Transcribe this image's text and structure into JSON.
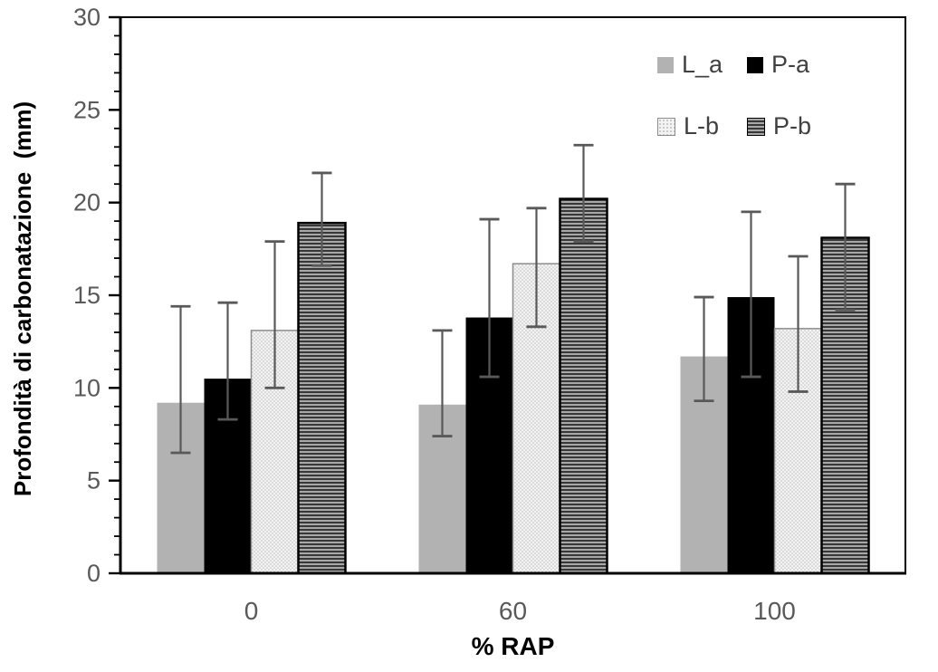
{
  "chart_data": {
    "type": "bar",
    "title": "",
    "xlabel": "% RAP",
    "ylabel": "Profondità di carbonatazione  (mm)",
    "categories": [
      "0",
      "60",
      "100"
    ],
    "ylim": [
      0,
      30
    ],
    "y_major_step": 5,
    "y_minor_step": 1,
    "grid": false,
    "legend_position": "top-right-inside",
    "axis_color": "#000000",
    "tick_label_color": "#595959",
    "error_bar_color": "#595959",
    "series": [
      {
        "name": "L_a",
        "style": "solid-gray",
        "color": "#b2b2b2",
        "values": [
          9.2,
          9.1,
          11.7
        ],
        "err_top": [
          14.4,
          13.1,
          14.9
        ],
        "err_bottom": [
          6.5,
          7.4,
          9.3
        ]
      },
      {
        "name": "P-a",
        "style": "solid-black",
        "color": "#000000",
        "values": [
          10.5,
          13.8,
          14.9
        ],
        "err_top": [
          14.6,
          19.1,
          19.5
        ],
        "err_bottom": [
          8.3,
          10.6,
          10.6
        ]
      },
      {
        "name": "L-b",
        "style": "dotted-light",
        "color": "#f3f3f3",
        "values": [
          13.1,
          16.7,
          13.2
        ],
        "err_top": [
          17.9,
          19.7,
          17.1
        ],
        "err_bottom": [
          10.0,
          13.3,
          9.8
        ]
      },
      {
        "name": "P-b",
        "style": "h-stripes",
        "color": "#a8a8a8",
        "values": [
          18.9,
          20.2,
          18.1
        ],
        "err_top": [
          21.6,
          23.1,
          21.0
        ],
        "err_bottom": [
          16.6,
          17.9,
          14.2
        ]
      }
    ]
  },
  "legend": {
    "items": [
      {
        "label": "L_a"
      },
      {
        "label": "P-a"
      },
      {
        "label": "L-b"
      },
      {
        "label": "P-b"
      }
    ]
  }
}
